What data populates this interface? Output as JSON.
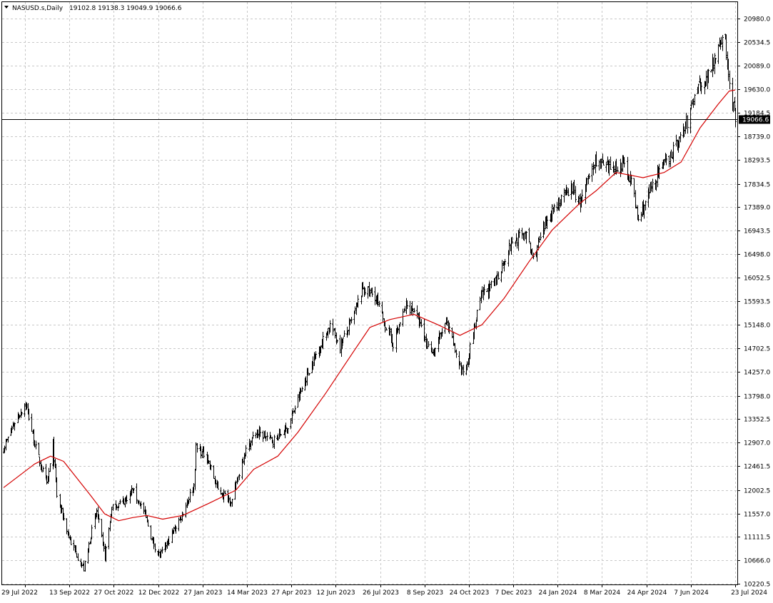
{
  "header": {
    "symbol_label": "NASUSD.s,Daily",
    "ohlc_label": "19102.8 19138.3 19049.9 19066.6"
  },
  "price_marker": {
    "label": "19066.6",
    "value": 19066.6
  },
  "colors": {
    "bars": "#000000",
    "moving_average": "#d40000",
    "grid": "#c8c8c8",
    "marker_bg": "#000000",
    "marker_text": "#ffffff"
  },
  "chart_data": {
    "type": "ohlc",
    "title": "NASUSD.s,Daily",
    "grid": true,
    "y_ticks": [
      "20980.0",
      "20534.5",
      "20089.0",
      "19630.0",
      "19184.5",
      "18739.0",
      "18293.5",
      "17834.5",
      "17389.0",
      "16943.5",
      "16498.0",
      "16052.5",
      "15593.5",
      "15148.0",
      "14702.5",
      "14257.0",
      "13798.0",
      "13352.5",
      "12907.0",
      "12461.5",
      "12002.5",
      "11557.0",
      "11111.5",
      "10666.0",
      "10220.5"
    ],
    "x_ticks": [
      "29 Jul 2022",
      "13 Sep 2022",
      "27 Oct 2022",
      "12 Dec 2022",
      "27 Jan 2023",
      "14 Mar 2023",
      "27 Apr 2023",
      "12 Jun 2023",
      "26 Jul 2023",
      "8 Sep 2023",
      "24 Oct 2023",
      "7 Dec 2023",
      "24 Jan 2024",
      "8 Mar 2024",
      "24 Apr 2024",
      "7 Jun 2024",
      "23 Jul 2024"
    ],
    "ylim": [
      10120,
      21340
    ],
    "price_waypoints": [
      {
        "date": "2022-07-25",
        "close": 12800
      },
      {
        "date": "2022-08-05",
        "close": 13300
      },
      {
        "date": "2022-08-16",
        "close": 13650
      },
      {
        "date": "2022-08-26",
        "close": 12800
      },
      {
        "date": "2022-09-06",
        "close": 12100
      },
      {
        "date": "2022-09-12",
        "close": 12850
      },
      {
        "date": "2022-09-16",
        "close": 11900
      },
      {
        "date": "2022-09-30",
        "close": 11000
      },
      {
        "date": "2022-10-13",
        "close": 10500
      },
      {
        "date": "2022-10-20",
        "close": 11150
      },
      {
        "date": "2022-10-26",
        "close": 11600
      },
      {
        "date": "2022-11-03",
        "close": 10750
      },
      {
        "date": "2022-11-10",
        "close": 11650
      },
      {
        "date": "2022-11-22",
        "close": 11800
      },
      {
        "date": "2022-12-01",
        "close": 12000
      },
      {
        "date": "2022-12-12",
        "close": 11600
      },
      {
        "date": "2022-12-21",
        "close": 11000
      },
      {
        "date": "2022-12-28",
        "close": 10750
      },
      {
        "date": "2023-01-06",
        "close": 11050
      },
      {
        "date": "2023-01-18",
        "close": 11500
      },
      {
        "date": "2023-01-31",
        "close": 12100
      },
      {
        "date": "2023-02-02",
        "close": 12800
      },
      {
        "date": "2023-02-13",
        "close": 12650
      },
      {
        "date": "2023-02-24",
        "close": 12000
      },
      {
        "date": "2023-03-10",
        "close": 11800
      },
      {
        "date": "2023-03-22",
        "close": 12700
      },
      {
        "date": "2023-04-03",
        "close": 13100
      },
      {
        "date": "2023-04-20",
        "close": 12950
      },
      {
        "date": "2023-05-05",
        "close": 13200
      },
      {
        "date": "2023-05-26",
        "close": 14300
      },
      {
        "date": "2023-06-16",
        "close": 15150
      },
      {
        "date": "2023-06-26",
        "close": 14750
      },
      {
        "date": "2023-07-07",
        "close": 15200
      },
      {
        "date": "2023-07-19",
        "close": 15850
      },
      {
        "date": "2023-07-31",
        "close": 15700
      },
      {
        "date": "2023-08-10",
        "close": 15150
      },
      {
        "date": "2023-08-18",
        "close": 14800
      },
      {
        "date": "2023-08-31",
        "close": 15500
      },
      {
        "date": "2023-09-08",
        "close": 15450
      },
      {
        "date": "2023-09-21",
        "close": 14750
      },
      {
        "date": "2023-09-28",
        "close": 14650
      },
      {
        "date": "2023-10-10",
        "close": 15200
      },
      {
        "date": "2023-10-26",
        "close": 14250
      },
      {
        "date": "2023-10-30",
        "close": 14350
      },
      {
        "date": "2023-11-14",
        "close": 15700
      },
      {
        "date": "2023-11-28",
        "close": 15950
      },
      {
        "date": "2023-12-14",
        "close": 16700
      },
      {
        "date": "2023-12-28",
        "close": 16900
      },
      {
        "date": "2024-01-05",
        "close": 16400
      },
      {
        "date": "2024-01-22",
        "close": 17300
      },
      {
        "date": "2024-02-12",
        "close": 17750
      },
      {
        "date": "2024-02-21",
        "close": 17450
      },
      {
        "date": "2024-03-07",
        "close": 18300
      },
      {
        "date": "2024-03-19",
        "close": 18100
      },
      {
        "date": "2024-04-04",
        "close": 18200
      },
      {
        "date": "2024-04-12",
        "close": 17900
      },
      {
        "date": "2024-04-19",
        "close": 17100
      },
      {
        "date": "2024-04-26",
        "close": 17500
      },
      {
        "date": "2024-05-08",
        "close": 18000
      },
      {
        "date": "2024-05-28",
        "close": 18600
      },
      {
        "date": "2024-06-07",
        "close": 19000
      },
      {
        "date": "2024-06-17",
        "close": 19750
      },
      {
        "date": "2024-06-26",
        "close": 19800
      },
      {
        "date": "2024-07-10",
        "close": 20600
      },
      {
        "date": "2024-07-15",
        "close": 20500
      },
      {
        "date": "2024-07-19",
        "close": 19700
      },
      {
        "date": "2024-07-25",
        "close": 19066.6
      }
    ],
    "series": [
      {
        "type": "line",
        "points": [
          {
            "date": "2022-07-25",
            "value": 12050
          },
          {
            "date": "2022-08-25",
            "value": 12500
          },
          {
            "date": "2022-09-10",
            "value": 12650
          },
          {
            "date": "2022-09-23",
            "value": 12550
          },
          {
            "date": "2022-10-20",
            "value": 11900
          },
          {
            "date": "2022-11-03",
            "value": 11550
          },
          {
            "date": "2022-11-17",
            "value": 11420
          },
          {
            "date": "2022-12-01",
            "value": 11480
          },
          {
            "date": "2022-12-15",
            "value": 11520
          },
          {
            "date": "2022-12-31",
            "value": 11450
          },
          {
            "date": "2023-01-20",
            "value": 11520
          },
          {
            "date": "2023-02-15",
            "value": 11750
          },
          {
            "date": "2023-03-14",
            "value": 12000
          },
          {
            "date": "2023-04-01",
            "value": 12400
          },
          {
            "date": "2023-04-25",
            "value": 12650
          },
          {
            "date": "2023-05-15",
            "value": 13100
          },
          {
            "date": "2023-06-12",
            "value": 13850
          },
          {
            "date": "2023-07-10",
            "value": 14650
          },
          {
            "date": "2023-07-26",
            "value": 15100
          },
          {
            "date": "2023-08-15",
            "value": 15250
          },
          {
            "date": "2023-09-08",
            "value": 15350
          },
          {
            "date": "2023-10-02",
            "value": 15150
          },
          {
            "date": "2023-10-24",
            "value": 14950
          },
          {
            "date": "2023-11-15",
            "value": 15150
          },
          {
            "date": "2023-12-07",
            "value": 15650
          },
          {
            "date": "2024-01-01",
            "value": 16350
          },
          {
            "date": "2024-01-24",
            "value": 16950
          },
          {
            "date": "2024-02-20",
            "value": 17450
          },
          {
            "date": "2024-03-08",
            "value": 17700
          },
          {
            "date": "2024-03-28",
            "value": 18050
          },
          {
            "date": "2024-04-24",
            "value": 17950
          },
          {
            "date": "2024-05-15",
            "value": 18050
          },
          {
            "date": "2024-06-01",
            "value": 18250
          },
          {
            "date": "2024-06-20",
            "value": 18900
          },
          {
            "date": "2024-07-08",
            "value": 19350
          },
          {
            "date": "2024-07-19",
            "value": 19600
          },
          {
            "date": "2024-07-25",
            "value": 19620
          }
        ]
      }
    ]
  }
}
